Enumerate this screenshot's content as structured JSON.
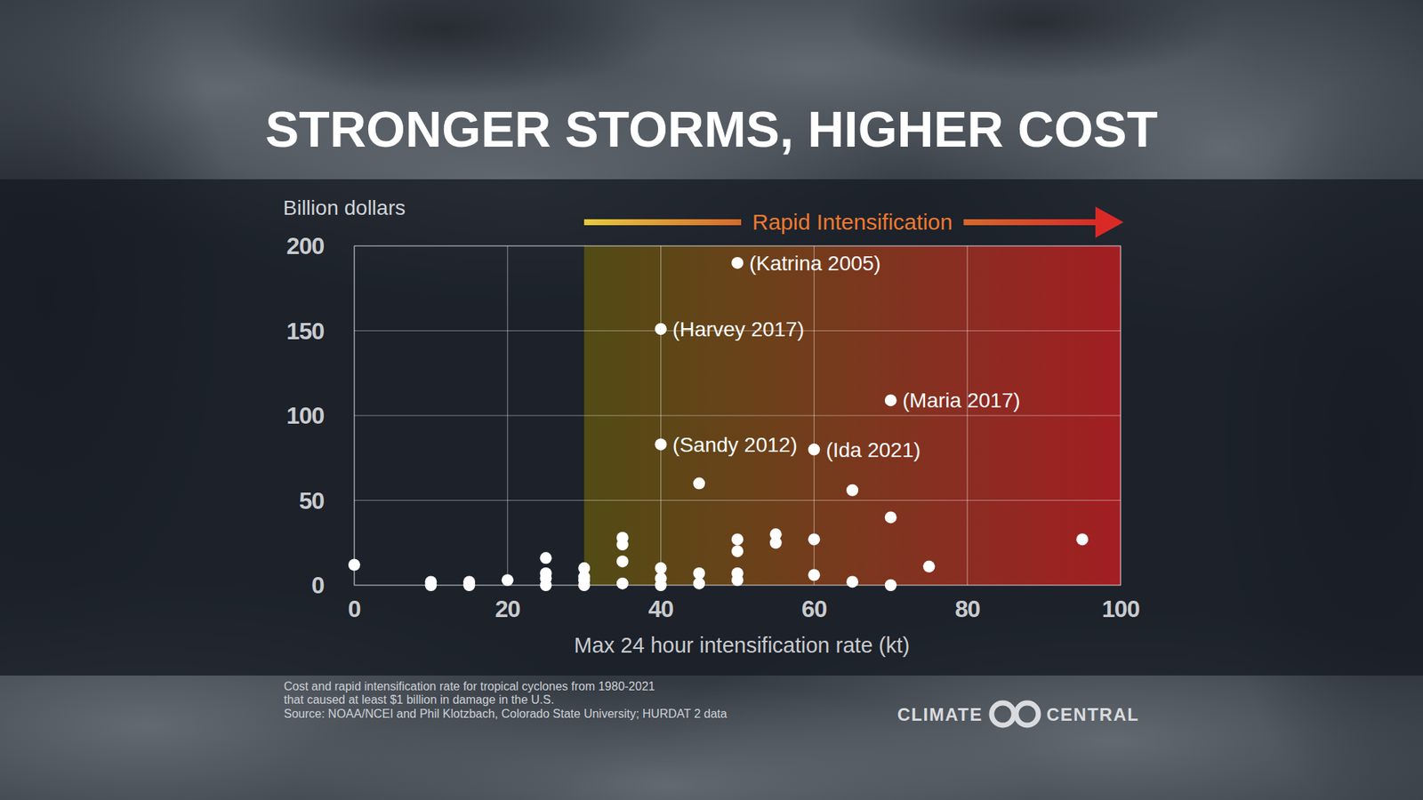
{
  "chart_data": {
    "type": "scatter",
    "title": "STRONGER STORMS, HIGHER COST",
    "y_label": "Billion dollars",
    "x_label": "Max 24 hour intensification rate (kt)",
    "xlim": [
      0,
      100
    ],
    "ylim": [
      0,
      200
    ],
    "xticks": [
      0,
      20,
      40,
      60,
      80,
      100
    ],
    "yticks": [
      0,
      50,
      100,
      150,
      200
    ],
    "grid": true,
    "color": "#ffffff",
    "marker": "circle",
    "x": [
      0,
      10,
      10,
      15,
      15,
      20,
      25,
      25,
      25,
      25,
      30,
      30,
      30,
      30,
      35,
      35,
      35,
      35,
      40,
      40,
      40,
      40,
      40,
      45,
      45,
      45,
      50,
      50,
      50,
      50,
      50,
      55,
      55,
      60,
      60,
      60,
      65,
      65,
      70,
      70,
      70,
      75,
      95
    ],
    "values": [
      12,
      2,
      0,
      2,
      0,
      3,
      16,
      7,
      4,
      0,
      10,
      5,
      3,
      0,
      28,
      24,
      14,
      1,
      151,
      83,
      10,
      4,
      0,
      60,
      7,
      1,
      190,
      27,
      20,
      7,
      3,
      30,
      25,
      80,
      27,
      6,
      56,
      2,
      109,
      40,
      0,
      11,
      27
    ],
    "point_labels": [
      null,
      null,
      null,
      null,
      null,
      null,
      null,
      null,
      null,
      null,
      null,
      null,
      null,
      null,
      null,
      null,
      null,
      null,
      "(Harvey 2017)",
      "(Sandy 2012)",
      null,
      null,
      null,
      null,
      null,
      null,
      "(Katrina 2005)",
      null,
      null,
      null,
      null,
      null,
      null,
      "(Ida 2021)",
      null,
      null,
      null,
      null,
      "(Maria 2017)",
      null,
      null,
      null,
      null
    ],
    "shaded_region": {
      "from": 30,
      "to": 100,
      "label": "Rapid Intensification"
    },
    "notes": [
      "Cost and rapid intensification rate for tropical cyclones from 1980-2021",
      "that caused at least $1 billion in damage in the U.S.",
      "Source: NOAA/NCEI and Phil Klotzbach, Colorado State University; HURDAT 2 data"
    ]
  },
  "branding": {
    "left": "CLIMATE",
    "right": "CENTRAL"
  }
}
